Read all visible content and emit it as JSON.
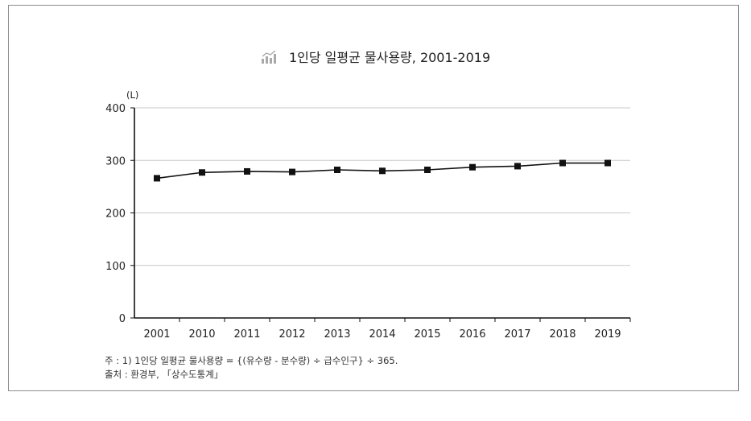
{
  "title": "1인당 일평균 물사용량, 2001-2019",
  "chart_data": {
    "type": "line",
    "title": "1인당 일평균 물사용량, 2001-2019",
    "unit_label": "(L)",
    "categories": [
      "2001",
      "2010",
      "2011",
      "2012",
      "2013",
      "2014",
      "2015",
      "2016",
      "2017",
      "2018",
      "2019"
    ],
    "series": [
      {
        "values": [
          266,
          277,
          279,
          278,
          282,
          280,
          282,
          287,
          289,
          295,
          295
        ]
      }
    ],
    "ylim": [
      0,
      400
    ],
    "yticks": [
      "0",
      "100",
      "200",
      "300",
      "400"
    ],
    "grid": true,
    "marker": "square",
    "colors": {
      "line": "#111111",
      "grid": "#c8c8c8",
      "axis": "#111111"
    }
  },
  "notes": {
    "note": "주   : 1) 1인당 일평균 물사용량 = {(유수량 - 분수량) ÷ 급수인구} ÷ 365.",
    "source": "출처 : 환경부, 「상수도통계」"
  }
}
